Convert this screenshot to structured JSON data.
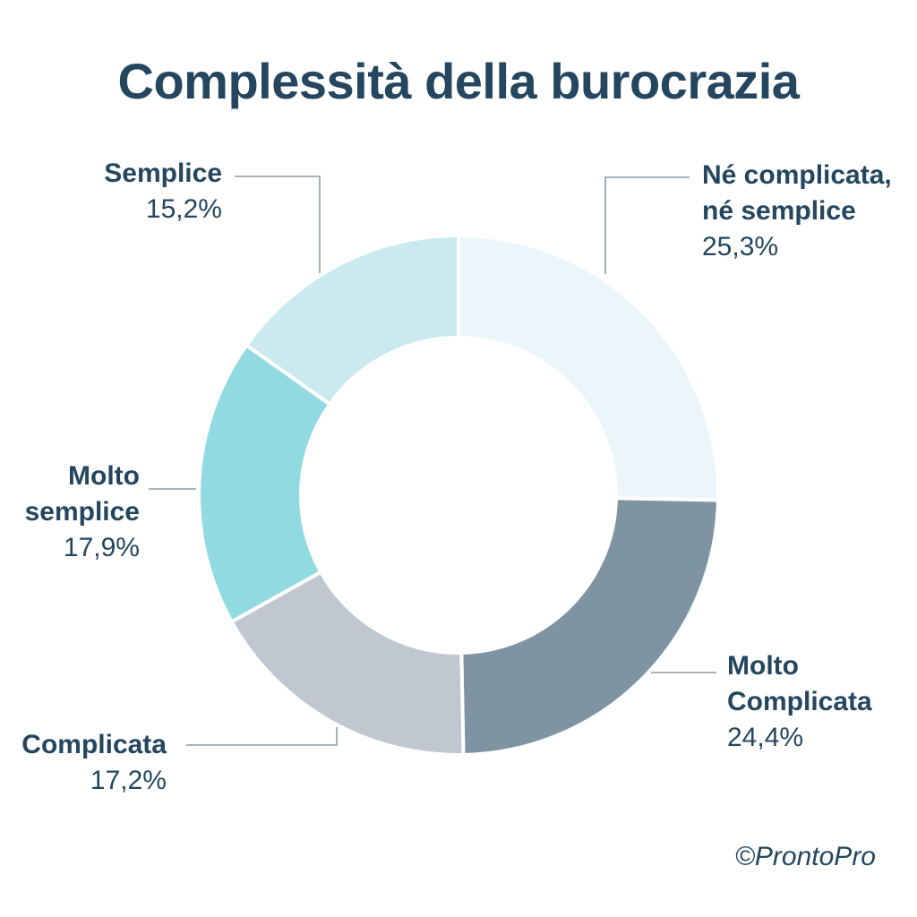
{
  "chart_data": {
    "type": "pie",
    "title": "Complessità della burocrazia",
    "slices": [
      {
        "label": "Né complicata,\nné semplice",
        "value": 25.3,
        "value_label": "25,3%",
        "color": "#ecf5f9"
      },
      {
        "label": "Molto\nComplicata",
        "value": 24.4,
        "value_label": "24,4%",
        "color": "#7f94a3"
      },
      {
        "label": "Complicata",
        "value": 17.2,
        "value_label": "17,2%",
        "color": "#c0c7d1"
      },
      {
        "label": "Molto\nsemplice",
        "value": 17.9,
        "value_label": "17,9%",
        "color": "#92dae2"
      },
      {
        "label": "Semplice",
        "value": 15.2,
        "value_label": "15,2%",
        "color": "#cbeaf0"
      }
    ],
    "legend": "none"
  },
  "credit": "©ProntoPro"
}
